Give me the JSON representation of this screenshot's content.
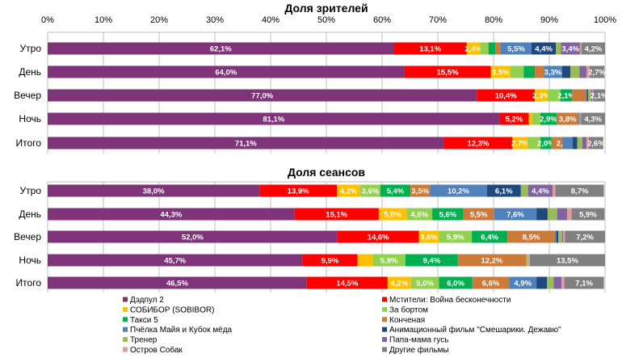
{
  "chart_data": [
    {
      "type": "bar",
      "orientation": "horizontal",
      "stacked": true,
      "title": "Доля зрителей",
      "categories": [
        "Утро",
        "День",
        "Вечер",
        "Ночь",
        "Итого"
      ],
      "xlim": [
        0,
        100
      ],
      "x_ticks": [
        "0%",
        "10%",
        "20%",
        "30%",
        "40%",
        "50%",
        "60%",
        "70%",
        "80%",
        "90%",
        "100%"
      ],
      "grid": true,
      "series": [
        {
          "name": "Дэдпул 2",
          "values": [
            62.1,
            64.0,
            77.0,
            81.1,
            71.1
          ],
          "labels": [
            "62,1%",
            "64,0%",
            "77,0%",
            "81,1%",
            "71,1%"
          ]
        },
        {
          "name": "Мстители: Война бесконечности",
          "values": [
            13.1,
            15.5,
            10.4,
            5.2,
            12.3
          ],
          "labels": [
            "13,1%",
            "15,5%",
            "10,4%",
            "5,2%",
            "12,3%"
          ]
        },
        {
          "name": "СОБИБОР (SOBIBOR)",
          "values": [
            2.4,
            3.5,
            2.3,
            0.6,
            2.7
          ],
          "labels": [
            "2,4%",
            "3,5%",
            "2,3%",
            null,
            "2,7%"
          ]
        },
        {
          "name": "За бортом",
          "values": [
            1.5,
            2.4,
            2.3,
            1.5,
            2.3
          ],
          "labels": [
            null,
            null,
            null,
            null,
            null
          ]
        },
        {
          "name": "Такси 5",
          "values": [
            1.2,
            2.0,
            2.1,
            2.9,
            2.0
          ],
          "labels": [
            null,
            null,
            "2,1%",
            "2,9%",
            "2,0%"
          ]
        },
        {
          "name": "Конченая",
          "values": [
            1.0,
            1.6,
            2.4,
            3.8,
            2.0
          ],
          "labels": [
            null,
            null,
            null,
            "3,8%",
            "2,0%"
          ]
        },
        {
          "name": "Пчёлка Майя и Кубок мёда",
          "values": [
            5.5,
            3.3,
            0.3,
            0.1,
            1.8
          ],
          "labels": [
            "5,5%",
            "3,3%",
            null,
            null,
            null
          ]
        },
        {
          "name": "Анимационный фильм \"Смешарики. Дежавю\"",
          "values": [
            4.4,
            1.5,
            0.2,
            0.1,
            0.8
          ],
          "labels": [
            "4,4%",
            null,
            null,
            null,
            null
          ]
        },
        {
          "name": "Тренер",
          "values": [
            0.9,
            1.6,
            0.5,
            0.2,
            0.9
          ],
          "labels": [
            null,
            null,
            null,
            null,
            null
          ]
        },
        {
          "name": "Папа-мама гусь",
          "values": [
            3.4,
            1.3,
            0.2,
            0.1,
            0.8
          ],
          "labels": [
            "3,4%",
            null,
            null,
            null,
            null
          ]
        },
        {
          "name": "Остров Собак",
          "values": [
            0.3,
            0.5,
            0.2,
            0.1,
            0.4
          ],
          "labels": [
            null,
            null,
            null,
            null,
            null
          ]
        },
        {
          "name": "Другие фильмы",
          "values": [
            4.2,
            2.7,
            2.1,
            4.3,
            2.6
          ],
          "labels": [
            "4,2%",
            "2,7%",
            "2,1%",
            "4,3%",
            "2,6%"
          ]
        }
      ]
    },
    {
      "type": "bar",
      "orientation": "horizontal",
      "stacked": true,
      "title": "Доля сеансов",
      "categories": [
        "Утро",
        "День",
        "Вечер",
        "Ночь",
        "Итого"
      ],
      "xlim": [
        0,
        100
      ],
      "grid": true,
      "series": [
        {
          "name": "Дэдпул 2",
          "values": [
            38.0,
            44.3,
            52.0,
            45.7,
            46.5
          ],
          "labels": [
            "38,0%",
            "44,3%",
            "52,0%",
            "45,7%",
            "46,5%"
          ]
        },
        {
          "name": "Мстители: Война бесконечности",
          "values": [
            13.9,
            15.1,
            14.6,
            9.9,
            14.5
          ],
          "labels": [
            "13,9%",
            "15,1%",
            "14,6%",
            "9,9%",
            "14,5%"
          ]
        },
        {
          "name": "СОБИБОР (SOBIBOR)",
          "values": [
            4.2,
            5.0,
            3.6,
            2.7,
            4.2
          ],
          "labels": [
            "4,2%",
            "5,0%",
            "3,6%",
            null,
            "4,2%"
          ]
        },
        {
          "name": "За бортом",
          "values": [
            3.6,
            4.6,
            5.9,
            5.9,
            5.0
          ],
          "labels": [
            "3,6%",
            "4,6%",
            "5,9%",
            "5,9%",
            "5,0%"
          ]
        },
        {
          "name": "Такси 5",
          "values": [
            5.4,
            5.6,
            6.4,
            9.4,
            6.0
          ],
          "labels": [
            "5,4%",
            "5,6%",
            "6,4%",
            "9,4%",
            "6,0%"
          ]
        },
        {
          "name": "Конченая",
          "values": [
            3.5,
            5.5,
            8.5,
            12.2,
            6.6
          ],
          "labels": [
            "3,5%",
            "5,5%",
            "8,5%",
            "12,2%",
            "6,6%"
          ]
        },
        {
          "name": "Пчёлка Майя и Кубок мёда",
          "values": [
            10.2,
            7.6,
            0.3,
            0.0,
            4.9
          ],
          "labels": [
            "10,2%",
            "7,6%",
            null,
            null,
            "4,9%"
          ]
        },
        {
          "name": "Анимационный фильм \"Смешарики. Дежавю\"",
          "values": [
            6.1,
            2.0,
            0.3,
            0.0,
            1.9
          ],
          "labels": [
            "6,1%",
            null,
            null,
            null,
            null
          ]
        },
        {
          "name": "Тренер",
          "values": [
            1.3,
            1.7,
            0.7,
            0.4,
            1.2
          ],
          "labels": [
            null,
            null,
            null,
            null,
            null
          ]
        },
        {
          "name": "Папа-мама гусь",
          "values": [
            4.4,
            1.8,
            0.2,
            0.0,
            1.4
          ],
          "labels": [
            "4,4%",
            null,
            null,
            null,
            null
          ]
        },
        {
          "name": "Остров Собак",
          "values": [
            0.5,
            0.8,
            0.3,
            0.3,
            0.5
          ],
          "labels": [
            null,
            null,
            null,
            null,
            null
          ]
        },
        {
          "name": "Другие фильмы",
          "values": [
            8.7,
            5.9,
            7.2,
            13.5,
            7.1
          ],
          "labels": [
            "8,7%",
            "5,9%",
            "7,2%",
            "13,5%",
            "7,1%"
          ]
        }
      ]
    }
  ],
  "legend": {
    "placement": "bottom",
    "items": [
      {
        "name": "Дэдпул 2",
        "color": "#7F3378"
      },
      {
        "name": "Мстители: Война бесконечности",
        "color": "#FF0000"
      },
      {
        "name": "СОБИБОР (SOBIBOR)",
        "color": "#FFC000"
      },
      {
        "name": "За бортом",
        "color": "#92D050"
      },
      {
        "name": "Такси 5",
        "color": "#00B050"
      },
      {
        "name": "Конченая",
        "color": "#CC7A3A"
      },
      {
        "name": "Пчёлка Майя и Кубок мёда",
        "color": "#4F81BD"
      },
      {
        "name": "Анимационный фильм \"Смешарики. Дежавю\"",
        "color": "#1F497D"
      },
      {
        "name": "Тренер",
        "color": "#9BBB59"
      },
      {
        "name": "Папа-мама гусь",
        "color": "#8064A2"
      },
      {
        "name": "Остров Собак",
        "color": "#E09A9A"
      },
      {
        "name": "Другие фильмы",
        "color": "#808080"
      }
    ]
  }
}
